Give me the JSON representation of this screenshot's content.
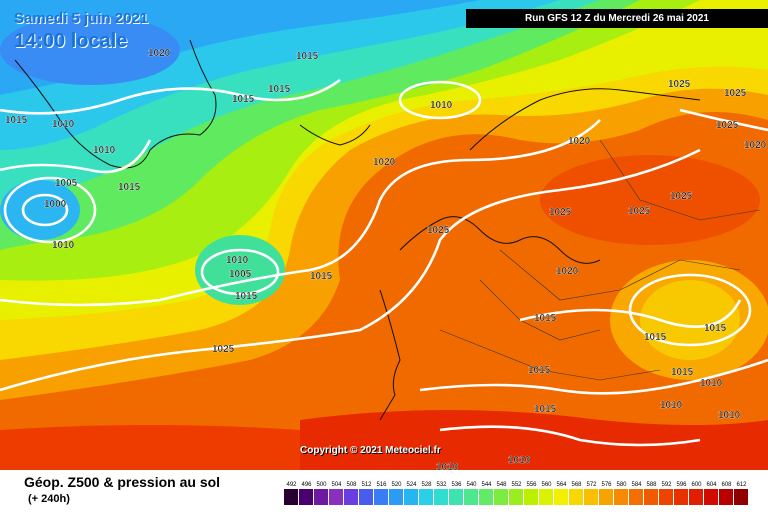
{
  "header": {
    "valid_date": "Samedi 5 juin 2021",
    "valid_time": "14:00 locale",
    "run_info": "Run GFS 12 Z du Mercredi 26 mai 2021"
  },
  "map": {
    "copyright": "Copyright © 2021 Meteociel.fr",
    "isobar_labels": [
      "1020",
      "1015",
      "1015",
      "1015",
      "1015",
      "1010",
      "1010",
      "1010",
      "1005",
      "1000",
      "1015",
      "1010",
      "1010",
      "1005",
      "1015",
      "1025",
      "1020",
      "1015",
      "1025",
      "1020",
      "1025",
      "1025",
      "1025",
      "1020",
      "1015",
      "1015",
      "1015",
      "1010",
      "1015",
      "1015",
      "1010",
      "1010",
      "1025",
      "1025",
      "1025",
      "1020",
      "1015",
      "1010",
      "1010"
    ]
  },
  "footer": {
    "parameter": "Géop. Z500 & pression au sol",
    "lead_time": "(+ 240h)"
  },
  "legend": {
    "values": [
      "492",
      "496",
      "500",
      "504",
      "508",
      "512",
      "516",
      "520",
      "524",
      "528",
      "532",
      "536",
      "540",
      "544",
      "548",
      "552",
      "556",
      "560",
      "564",
      "568",
      "572",
      "576",
      "580",
      "584",
      "588",
      "592",
      "596",
      "600",
      "604",
      "608",
      "612"
    ],
    "colors": [
      "#2a0030",
      "#4b0070",
      "#6e1aa0",
      "#8a2fc0",
      "#6a3de0",
      "#4a5cf0",
      "#3a7cf5",
      "#2b9bf7",
      "#25b6f2",
      "#2acfe8",
      "#31ddd0",
      "#3de2b0",
      "#4ee690",
      "#62ea68",
      "#7dec40",
      "#9aee20",
      "#bdf000",
      "#daf200",
      "#f2f000",
      "#f6d800",
      "#f8bf00",
      "#f8a400",
      "#f78a00",
      "#f56e00",
      "#f25a00",
      "#ee4400",
      "#e83000",
      "#e01e00",
      "#d00c00",
      "#b80000",
      "#900000"
    ]
  }
}
